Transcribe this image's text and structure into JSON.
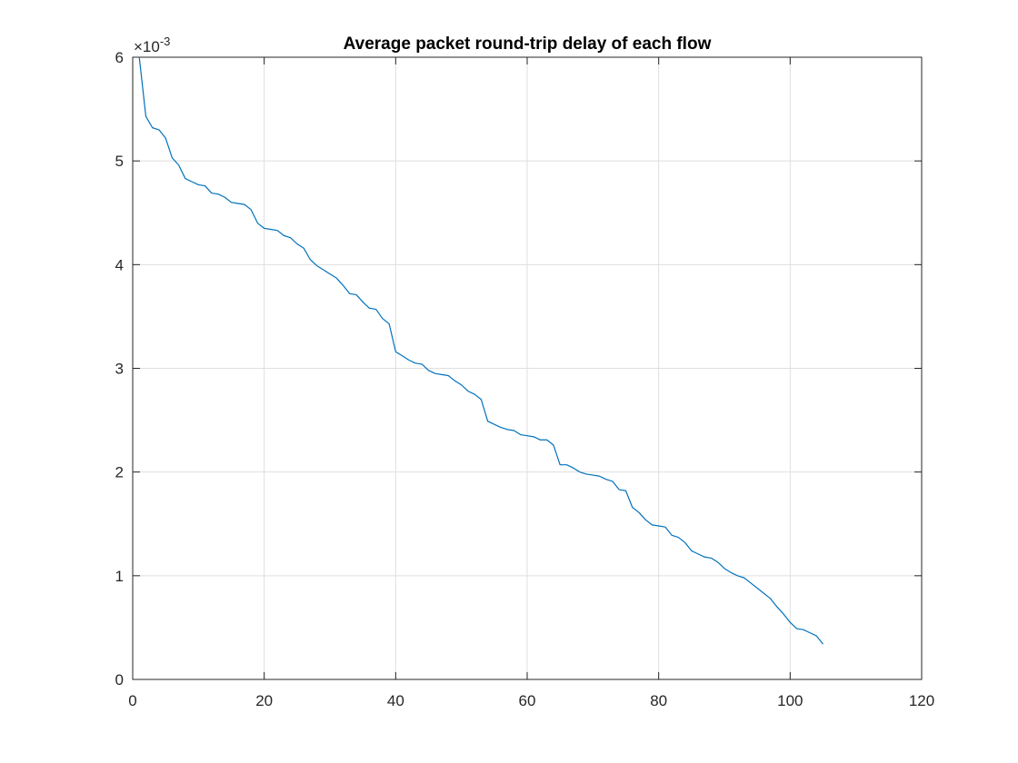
{
  "chart_data": {
    "type": "line",
    "title": "Average packet round-trip delay of each flow",
    "xlabel": "",
    "ylabel": "",
    "xlim": [
      0,
      120
    ],
    "ylim": [
      0,
      6
    ],
    "xticks": [
      "0",
      "20",
      "40",
      "60",
      "80",
      "100",
      "120"
    ],
    "yticks": [
      "0",
      "1",
      "2",
      "3",
      "4",
      "5",
      "6"
    ],
    "y_exponent_base": "×10",
    "y_exponent_power": "-3",
    "grid": true,
    "colors": {
      "line": "#0072bd",
      "grid": "#dfdfdf",
      "axis": "#262626"
    },
    "series": [
      {
        "x": [
          1,
          2,
          3,
          4,
          5,
          6,
          7,
          8,
          9,
          10,
          11,
          12,
          13,
          14,
          15,
          16,
          17,
          18,
          19,
          20,
          21,
          22,
          23,
          24,
          25,
          26,
          27,
          28,
          29,
          30,
          31,
          32,
          33,
          34,
          35,
          36,
          37,
          38,
          39,
          40,
          41,
          42,
          43,
          44,
          45,
          46,
          47,
          48,
          49,
          50,
          51,
          52,
          53,
          54,
          55,
          56,
          57,
          58,
          59,
          60,
          61,
          62,
          63,
          64,
          65,
          66,
          67,
          68,
          69,
          70,
          71,
          72,
          73,
          74,
          75,
          76,
          77,
          78,
          79,
          80,
          81,
          82,
          83,
          84,
          85,
          86,
          87,
          88,
          89,
          90,
          91,
          92,
          93,
          94,
          95,
          96,
          97,
          98,
          99,
          100,
          101,
          102,
          103,
          104,
          105
        ],
        "y": [
          6.0,
          5.43,
          5.32,
          5.3,
          5.22,
          5.03,
          4.96,
          4.83,
          4.8,
          4.77,
          4.76,
          4.69,
          4.68,
          4.65,
          4.6,
          4.59,
          4.58,
          4.53,
          4.4,
          4.35,
          4.34,
          4.33,
          4.28,
          4.26,
          4.2,
          4.16,
          4.05,
          3.99,
          3.95,
          3.91,
          3.87,
          3.8,
          3.72,
          3.71,
          3.64,
          3.58,
          3.57,
          3.48,
          3.43,
          3.16,
          3.12,
          3.08,
          3.05,
          3.04,
          2.98,
          2.95,
          2.94,
          2.93,
          2.88,
          2.84,
          2.78,
          2.75,
          2.7,
          2.49,
          2.46,
          2.43,
          2.41,
          2.4,
          2.36,
          2.35,
          2.34,
          2.31,
          2.31,
          2.26,
          2.07,
          2.07,
          2.04,
          2.0,
          1.98,
          1.97,
          1.96,
          1.93,
          1.91,
          1.83,
          1.82,
          1.66,
          1.61,
          1.54,
          1.49,
          1.48,
          1.47,
          1.39,
          1.37,
          1.32,
          1.24,
          1.21,
          1.18,
          1.17,
          1.13,
          1.07,
          1.03,
          1.0,
          0.98,
          0.93,
          0.88,
          0.83,
          0.78,
          0.7,
          0.63,
          0.55,
          0.49,
          0.48,
          0.45,
          0.42,
          0.34
        ]
      }
    ]
  }
}
